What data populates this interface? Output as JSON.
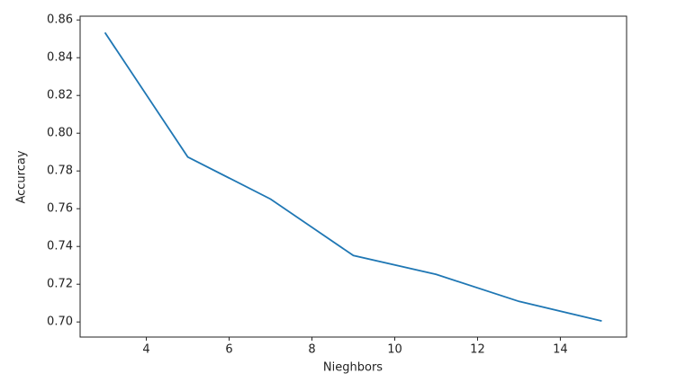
{
  "chart_data": {
    "type": "line",
    "x_label": "Nieghbors",
    "y_label": "Accurcay",
    "x": [
      3,
      5,
      7,
      9,
      11,
      13,
      15
    ],
    "series": [
      {
        "name": "Accuracy",
        "color": "#1f77b4",
        "values": [
          0.8533,
          0.7874,
          0.7651,
          0.7352,
          0.7252,
          0.7109,
          0.7005
        ]
      }
    ],
    "xlim": [
      2.4,
      15.6
    ],
    "ylim": [
      0.692,
      0.862
    ],
    "xticks": [
      4,
      6,
      8,
      10,
      12,
      14
    ],
    "yticks": [
      {
        "value": 0.7,
        "label": "0.70"
      },
      0.72,
      0.74,
      0.76,
      0.78,
      {
        "value": 0.8,
        "label": "0.80"
      },
      0.82,
      0.84,
      0.86
    ],
    "grid": false
  }
}
